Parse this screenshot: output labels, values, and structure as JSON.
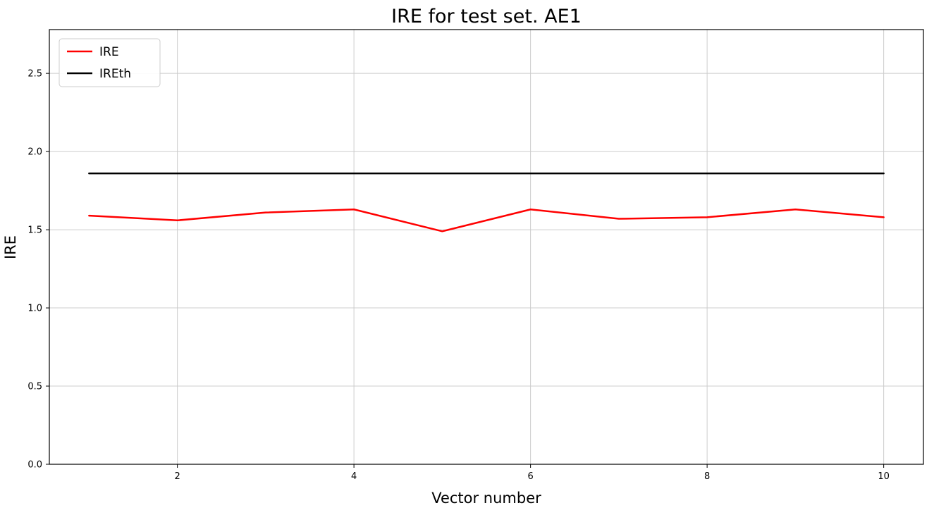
{
  "chart_data": {
    "type": "line",
    "title": "IRE for test set. AE1",
    "xlabel": "Vector number",
    "ylabel": "IRE",
    "x": [
      1,
      2,
      3,
      4,
      5,
      6,
      7,
      8,
      9,
      10
    ],
    "series": [
      {
        "name": "IRE",
        "color": "#ff0000",
        "values": [
          1.59,
          1.56,
          1.61,
          1.63,
          1.49,
          1.63,
          1.57,
          1.58,
          1.63,
          1.58
        ]
      },
      {
        "name": "IREth",
        "color": "#000000",
        "values": [
          1.86,
          1.86,
          1.86,
          1.86,
          1.86,
          1.86,
          1.86,
          1.86,
          1.86,
          1.86
        ]
      }
    ],
    "xlim": [
      0.55,
      10.45
    ],
    "ylim": [
      0.0,
      2.78
    ],
    "xticks": [
      {
        "value": 2,
        "label": "2"
      },
      {
        "value": 4,
        "label": "4"
      },
      {
        "value": 6,
        "label": "6"
      },
      {
        "value": 8,
        "label": "8"
      },
      {
        "value": 10,
        "label": "10"
      }
    ],
    "yticks": [
      {
        "value": 0.0,
        "label": "0.0"
      },
      {
        "value": 0.5,
        "label": "0.5"
      },
      {
        "value": 1.0,
        "label": "1.0"
      },
      {
        "value": 1.5,
        "label": "1.5"
      },
      {
        "value": 2.0,
        "label": "2.0"
      },
      {
        "value": 2.5,
        "label": "2.5"
      }
    ],
    "grid": true,
    "legend": {
      "position": "upper left",
      "entries": [
        "IRE",
        "IREth"
      ]
    },
    "colors": {
      "grid": "#cccccc",
      "axes_border": "#000000",
      "background": "#ffffff",
      "legend_border": "#cccccc"
    }
  }
}
